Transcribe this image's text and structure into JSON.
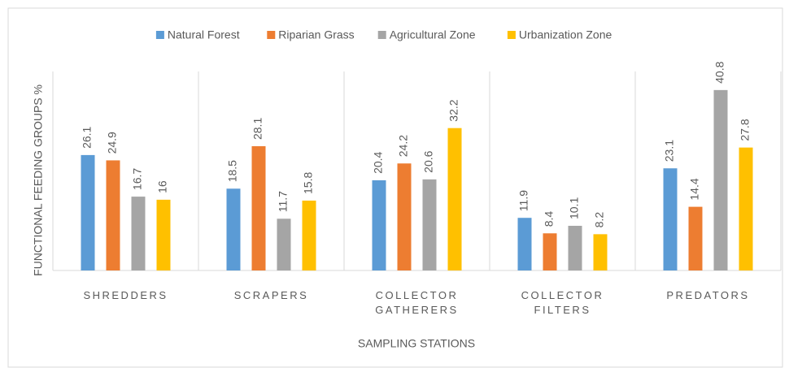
{
  "chart_data": {
    "type": "bar",
    "categories": [
      "SHREDDERS",
      "SCRAPERS",
      "COLLECTOR GATHERERS",
      "COLLECTOR FILTERS",
      "PREDATORS"
    ],
    "series": [
      {
        "name": "Natural Forest",
        "color": "#5b9bd5",
        "values": [
          26.1,
          18.5,
          20.4,
          11.9,
          23.1
        ]
      },
      {
        "name": "Riparian Grass",
        "color": "#ed7d31",
        "values": [
          24.9,
          28.1,
          24.2,
          8.4,
          14.4
        ]
      },
      {
        "name": "Agricultural Zone",
        "color": "#a5a5a5",
        "values": [
          16.7,
          11.7,
          20.6,
          10.1,
          40.8
        ]
      },
      {
        "name": "Urbanization Zone",
        "color": "#ffc000",
        "values": [
          16,
          15.8,
          32.2,
          8.2,
          27.8
        ]
      }
    ],
    "ylim": [
      0,
      45
    ],
    "y_label": "FUNCTIONAL FEEDING GROUPS %",
    "x_label": "SAMPLING STATIONS",
    "legend": "top"
  }
}
